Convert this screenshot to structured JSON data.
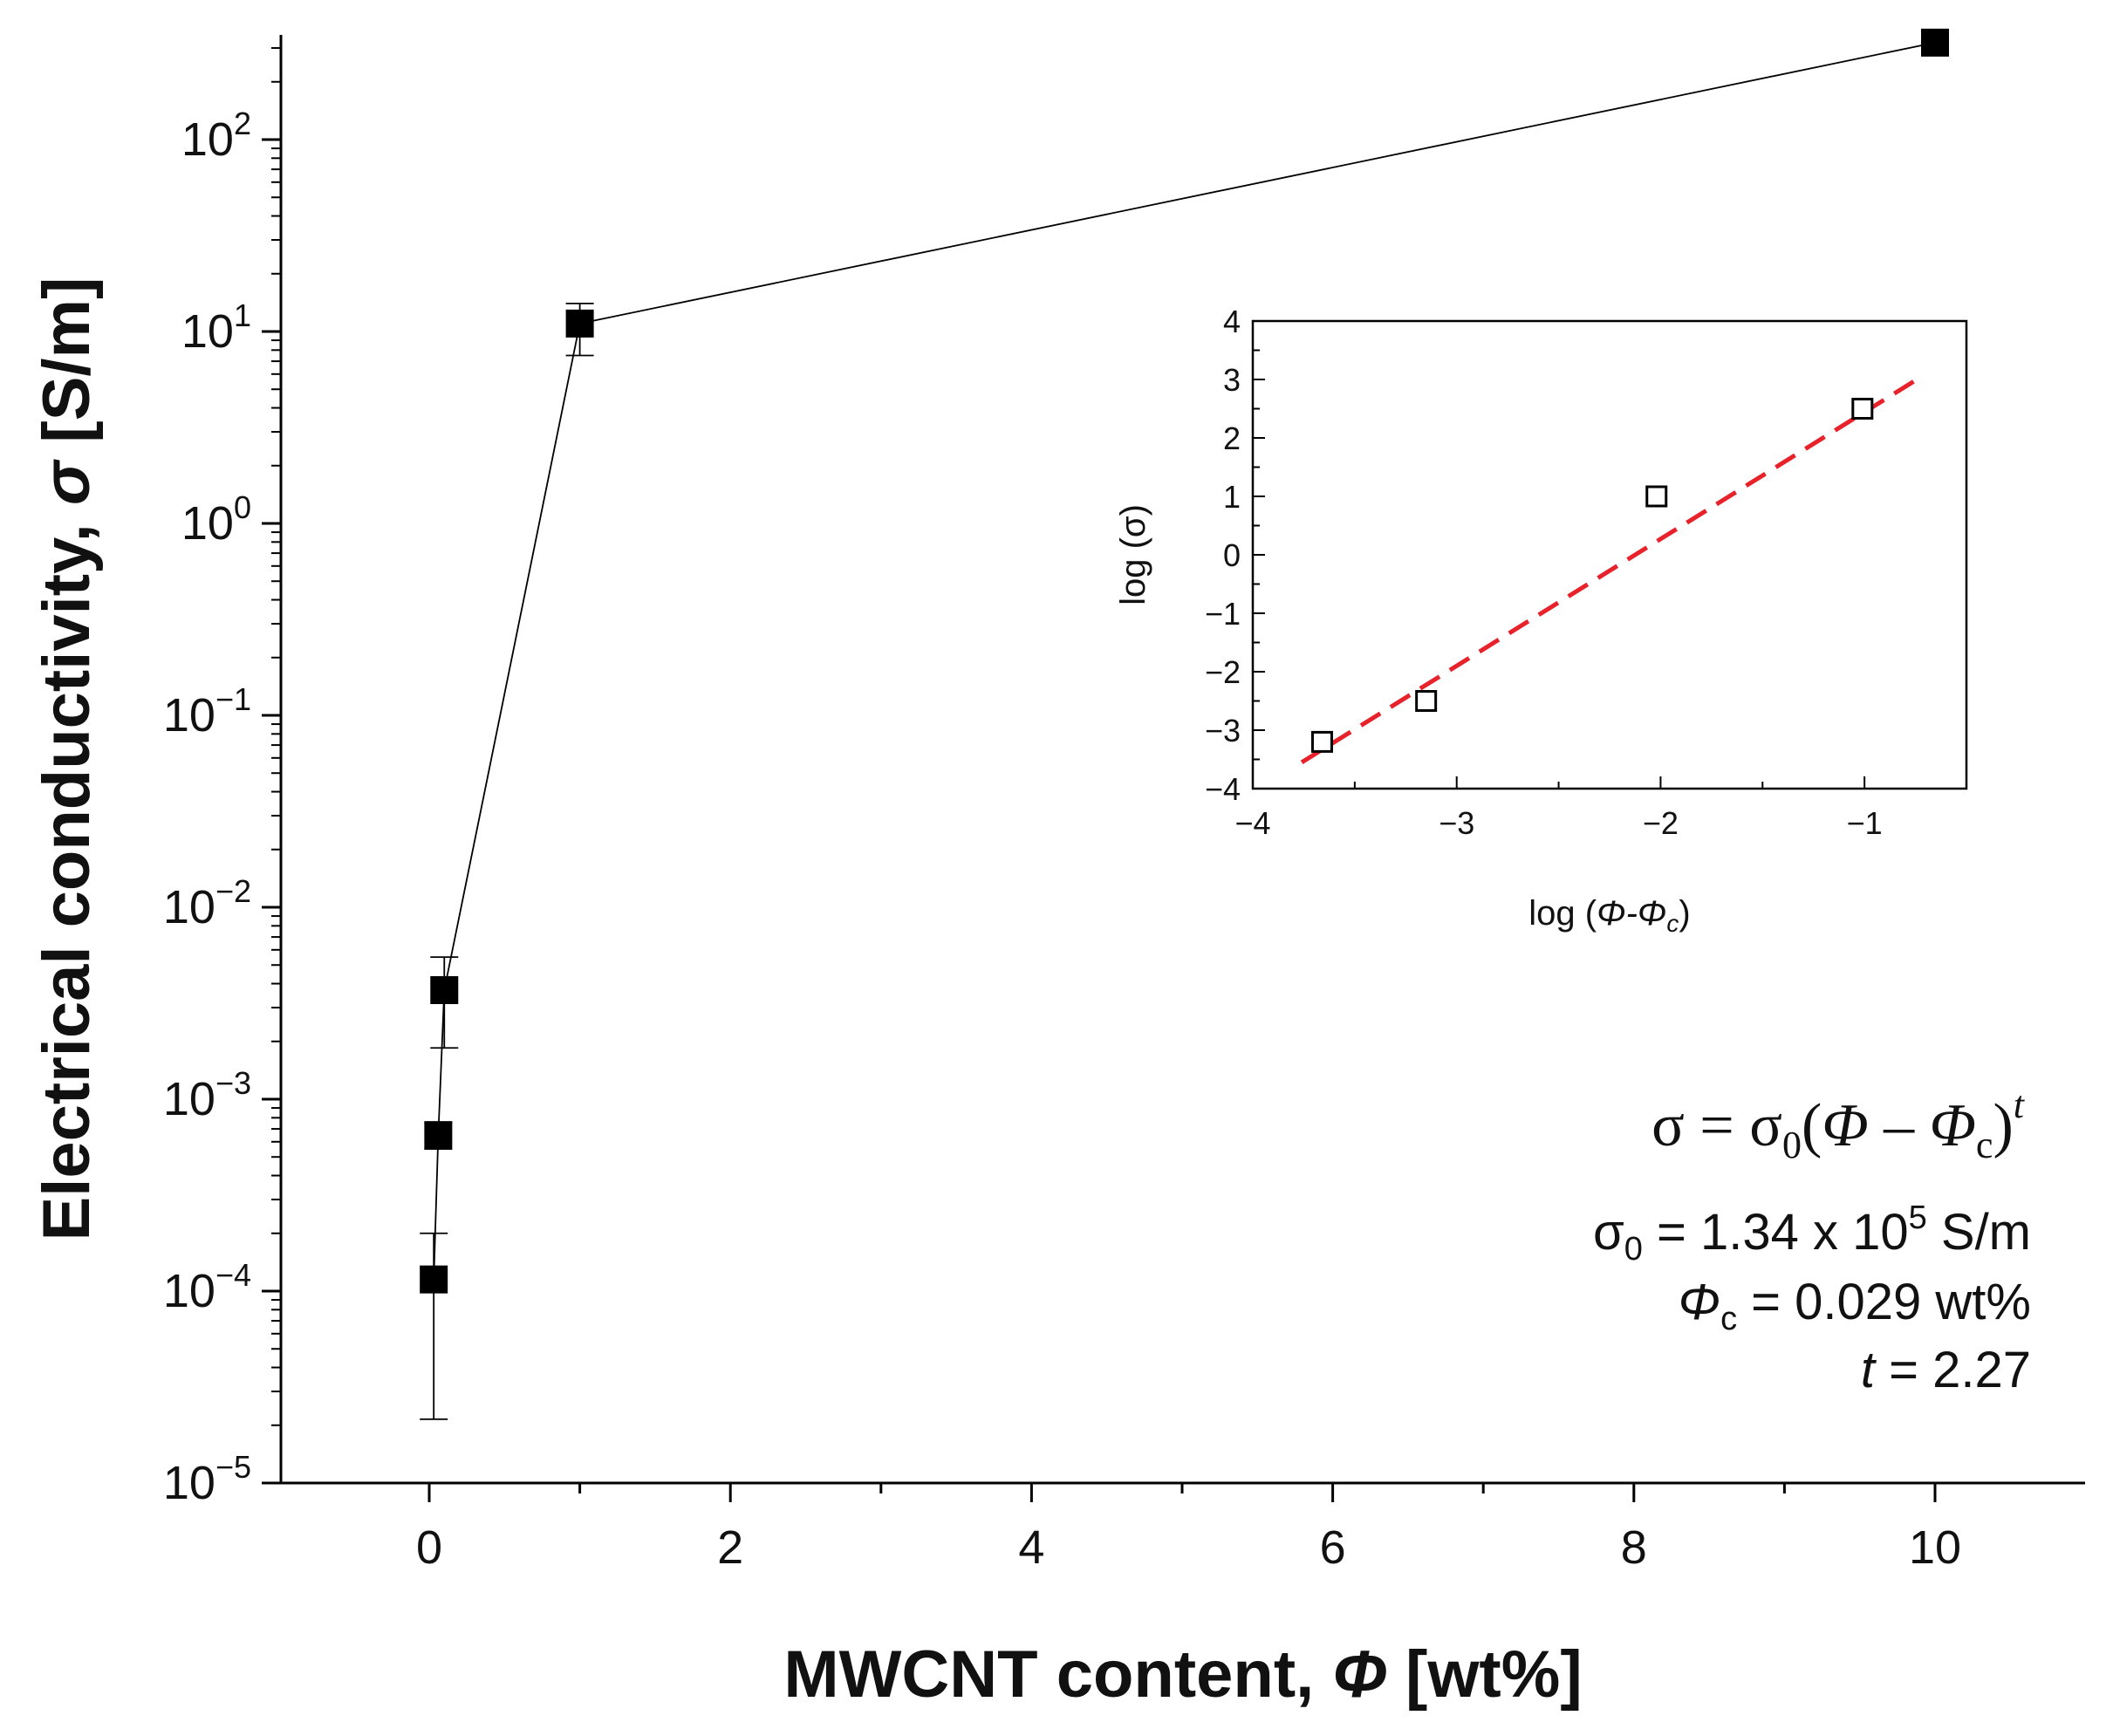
{
  "chart_data": [
    {
      "type": "line",
      "role": "main",
      "xlabel_text": "MWCNT content, ",
      "xlabel_symbol": "Φ",
      "xlabel_unit": " [wt%]",
      "ylabel_text": "Electrical conductivity, ",
      "ylabel_symbol": "σ",
      "ylabel_unit": " [S/m]",
      "xlim": [
        -1,
        11
      ],
      "ylim_log10": [
        -5,
        2.5
      ],
      "y_scale": "log",
      "x_ticks": [
        0,
        2,
        4,
        6,
        8,
        10
      ],
      "x_tick_labels": [
        "0",
        "2",
        "4",
        "6",
        "8",
        "10"
      ],
      "y_tick_exponents": [
        -5,
        -4,
        -3,
        -2,
        -1,
        0,
        1,
        2
      ],
      "y_tick_base": "10",
      "y_tick_exp_labels": [
        "−5",
        "−4",
        "−3",
        "−2",
        "−1",
        "0",
        "1",
        "2"
      ],
      "series": [
        {
          "name": "conductivity",
          "marker": "filled-square",
          "color": "#000000",
          "points": [
            {
              "x": 0.03,
              "y": 0.000115,
              "err_low": 2.15e-05,
              "err_high": 0.0002
            },
            {
              "x": 0.06,
              "y": 0.00065,
              "err_low": 0.00055,
              "err_high": 0.00075
            },
            {
              "x": 0.1,
              "y": 0.0037,
              "err_low": 0.00185,
              "err_high": 0.0055
            },
            {
              "x": 1.0,
              "y": 11,
              "err_low": 7.5,
              "err_high": 14
            },
            {
              "x": 10.0,
              "y": 320,
              "err_low": 320,
              "err_high": 320
            }
          ]
        }
      ]
    },
    {
      "type": "scatter",
      "role": "inset",
      "xlabel_text": "log (",
      "xlabel_sym1": "Φ",
      "xlabel_dash": "-",
      "xlabel_sym2": "Φ",
      "xlabel_sub": "c",
      "xlabel_close": ")",
      "ylabel_text": "log (σ)",
      "xlim": [
        -4,
        -0.5
      ],
      "ylim": [
        -4,
        4
      ],
      "x_ticks": [
        -4,
        -3,
        -2,
        -1
      ],
      "x_tick_labels": [
        "−4",
        "−3",
        "−2",
        "−1"
      ],
      "y_ticks": [
        -4,
        -3,
        -2,
        -1,
        0,
        1,
        2,
        3,
        4
      ],
      "y_tick_labels": [
        "−4",
        "−3",
        "−2",
        "−1",
        "0",
        "1",
        "2",
        "3",
        "4"
      ],
      "series": [
        {
          "name": "data",
          "marker": "open-square",
          "color": "#000000",
          "points": [
            {
              "x": -3.66,
              "y": -3.2
            },
            {
              "x": -3.15,
              "y": -2.5
            },
            {
              "x": -2.02,
              "y": 1.0
            },
            {
              "x": -1.01,
              "y": 2.5
            }
          ]
        },
        {
          "name": "fit",
          "style": "dashed-line",
          "color": "#e8222a",
          "points": [
            {
              "x": -3.76,
              "y": -3.55
            },
            {
              "x": -0.72,
              "y": 3.05
            }
          ]
        }
      ]
    }
  ],
  "annotations": {
    "formula_lhs": "σ = σ",
    "formula_sub0": "0",
    "formula_open": "(",
    "formula_phi": "Φ",
    "formula_minus": " – ",
    "formula_phic": "Φ",
    "formula_sub_c": "c",
    "formula_close": ")",
    "formula_exp": "t",
    "sigma0_label": "σ",
    "sigma0_sub": "0",
    "sigma0_value": " = 1.34 x 10",
    "sigma0_exp": "5",
    "sigma0_unit": " S/m",
    "phic_symbol": "Φ",
    "phic_sub": "c",
    "phic_value": " = 0.029 wt%",
    "t_symbol": "t",
    "t_value": " = 2.27"
  }
}
